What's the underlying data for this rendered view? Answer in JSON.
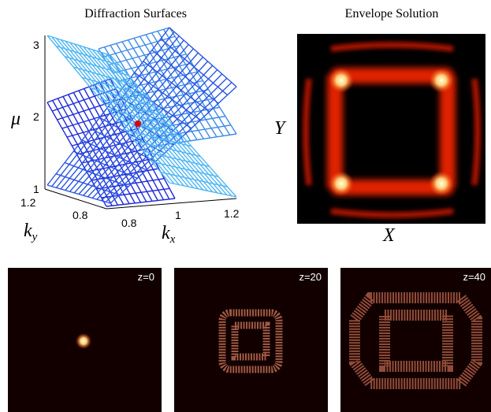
{
  "top_left": {
    "title": "Diffraction Surfaces",
    "z_label": "μ",
    "z_ticks": [
      "3",
      "2",
      "1"
    ],
    "ky_label": "k",
    "ky_sub": "y",
    "ky_ticks": [
      "1.2",
      "0.8"
    ],
    "kx_label": "k",
    "kx_sub": "x",
    "kx_ticks": [
      "0.8",
      "1",
      "1.2"
    ]
  },
  "top_right": {
    "title": "Envelope Solution",
    "x_label": "X",
    "y_label": "Y"
  },
  "frames": [
    {
      "label": "z=0"
    },
    {
      "label": "z=20"
    },
    {
      "label": "z=40"
    }
  ]
}
